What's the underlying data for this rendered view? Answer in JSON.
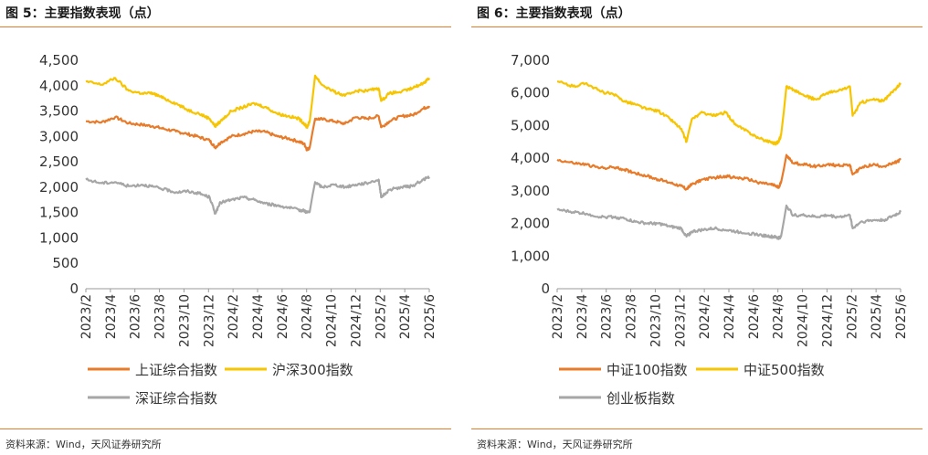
{
  "panels": [
    {
      "title": "图 5：主要指数表现（点）",
      "source": "资料来源：Wind，天风证券研究所"
    },
    {
      "title": "图 6：主要指数表现（点）",
      "source": "资料来源：Wind，天风证券研究所"
    }
  ],
  "chart_data": [
    {
      "type": "line",
      "title": "图 5：主要指数表现（点）",
      "xlabel": "",
      "ylabel": "",
      "ylim": [
        0,
        4500
      ],
      "yticks": [
        "0",
        "500",
        "1,000",
        "1,500",
        "2,000",
        "2,500",
        "3,000",
        "3,500",
        "4,000",
        "4,500"
      ],
      "xlim": [
        2023.083,
        2025.625
      ],
      "categories": [
        "2023/2",
        "2023/4",
        "2023/6",
        "2023/8",
        "2023/10",
        "2023/12",
        "2024/2",
        "2024/4",
        "2024/6",
        "2024/8",
        "2024/10",
        "2024/12",
        "2025/2",
        "2025/4",
        "2025/6"
      ],
      "grid": false,
      "legend": "bottom",
      "series": [
        {
          "name": "上证综合指数",
          "color": "#e87b2a",
          "x": [
            2023.083,
            2023.2,
            2023.3,
            2023.4,
            2023.5,
            2023.58,
            2023.66,
            2023.75,
            2023.83,
            2023.92,
            2024.0,
            2024.04,
            2024.08,
            2024.16,
            2024.25,
            2024.33,
            2024.41,
            2024.5,
            2024.58,
            2024.66,
            2024.7,
            2024.72,
            2024.74,
            2024.78,
            2024.83,
            2024.92,
            2025.0,
            2025.08,
            2025.16,
            2025.25,
            2025.27,
            2025.33,
            2025.42,
            2025.5,
            2025.58,
            2025.625
          ],
          "y": [
            3300,
            3280,
            3380,
            3260,
            3230,
            3200,
            3150,
            3100,
            3050,
            2990,
            2920,
            2780,
            2880,
            3000,
            3050,
            3100,
            3090,
            3000,
            2960,
            2900,
            2850,
            2740,
            2780,
            3350,
            3340,
            3300,
            3250,
            3380,
            3350,
            3400,
            3180,
            3300,
            3400,
            3420,
            3550,
            3600
          ]
        },
        {
          "name": "沪深300指数",
          "color": "#f7c500",
          "x": [
            2023.083,
            2023.2,
            2023.3,
            2023.4,
            2023.5,
            2023.58,
            2023.66,
            2023.75,
            2023.83,
            2023.92,
            2024.0,
            2024.04,
            2024.08,
            2024.16,
            2024.25,
            2024.33,
            2024.41,
            2024.5,
            2024.58,
            2024.66,
            2024.7,
            2024.72,
            2024.74,
            2024.78,
            2024.83,
            2024.92,
            2025.0,
            2025.08,
            2025.16,
            2025.25,
            2025.27,
            2025.33,
            2025.42,
            2025.5,
            2025.58,
            2025.625
          ],
          "y": [
            4080,
            4020,
            4150,
            3900,
            3850,
            3850,
            3750,
            3650,
            3530,
            3450,
            3350,
            3200,
            3300,
            3500,
            3580,
            3650,
            3580,
            3450,
            3400,
            3350,
            3250,
            3180,
            3300,
            4200,
            4020,
            3880,
            3800,
            3900,
            3900,
            3950,
            3700,
            3850,
            3880,
            3950,
            4050,
            4150
          ]
        },
        {
          "name": "深证综合指数",
          "color": "#a6a6a6",
          "x": [
            2023.083,
            2023.2,
            2023.3,
            2023.4,
            2023.5,
            2023.58,
            2023.66,
            2023.75,
            2023.83,
            2023.92,
            2024.0,
            2024.04,
            2024.08,
            2024.16,
            2024.25,
            2024.33,
            2024.41,
            2024.5,
            2024.58,
            2024.66,
            2024.7,
            2024.72,
            2024.74,
            2024.78,
            2024.83,
            2024.92,
            2025.0,
            2025.08,
            2025.16,
            2025.25,
            2025.27,
            2025.33,
            2025.42,
            2025.5,
            2025.58,
            2025.625
          ],
          "y": [
            2150,
            2080,
            2100,
            2020,
            2050,
            2010,
            1960,
            1900,
            1920,
            1880,
            1800,
            1480,
            1700,
            1750,
            1800,
            1750,
            1680,
            1640,
            1600,
            1550,
            1540,
            1500,
            1520,
            2100,
            2000,
            2050,
            2000,
            2050,
            2080,
            2150,
            1800,
            1950,
            2000,
            2020,
            2150,
            2200
          ]
        }
      ]
    },
    {
      "type": "line",
      "title": "图 6：主要指数表现（点）",
      "xlabel": "",
      "ylabel": "",
      "ylim": [
        0,
        7000
      ],
      "yticks": [
        "0",
        "1,000",
        "2,000",
        "3,000",
        "4,000",
        "5,000",
        "6,000",
        "7,000"
      ],
      "xlim": [
        2023.083,
        2025.625
      ],
      "categories": [
        "2023/2",
        "2023/4",
        "2023/6",
        "2023/8",
        "2023/10",
        "2023/12",
        "2024/2",
        "2024/4",
        "2024/6",
        "2024/8",
        "2024/10",
        "2024/12",
        "2025/2",
        "2025/4",
        "2025/6"
      ],
      "grid": false,
      "legend": "bottom",
      "series": [
        {
          "name": "中证100指数",
          "color": "#e87b2a",
          "x": [
            2023.083,
            2023.2,
            2023.3,
            2023.4,
            2023.5,
            2023.58,
            2023.66,
            2023.75,
            2023.83,
            2023.92,
            2024.0,
            2024.04,
            2024.08,
            2024.16,
            2024.25,
            2024.33,
            2024.41,
            2024.5,
            2024.58,
            2024.66,
            2024.7,
            2024.72,
            2024.74,
            2024.78,
            2024.83,
            2024.92,
            2025.0,
            2025.08,
            2025.16,
            2025.25,
            2025.27,
            2025.33,
            2025.42,
            2025.5,
            2025.58,
            2025.625
          ],
          "y": [
            3950,
            3850,
            3800,
            3700,
            3720,
            3650,
            3550,
            3450,
            3350,
            3250,
            3150,
            3050,
            3200,
            3350,
            3400,
            3450,
            3400,
            3350,
            3250,
            3200,
            3150,
            3100,
            3250,
            4100,
            3850,
            3800,
            3750,
            3800,
            3780,
            3800,
            3500,
            3700,
            3800,
            3750,
            3850,
            3950
          ]
        },
        {
          "name": "中证500指数",
          "color": "#f7c500",
          "x": [
            2023.083,
            2023.2,
            2023.3,
            2023.4,
            2023.5,
            2023.58,
            2023.66,
            2023.75,
            2023.83,
            2023.92,
            2024.0,
            2024.04,
            2024.08,
            2024.16,
            2024.25,
            2024.33,
            2024.41,
            2024.5,
            2024.58,
            2024.66,
            2024.7,
            2024.72,
            2024.74,
            2024.78,
            2024.83,
            2024.92,
            2025.0,
            2025.08,
            2025.16,
            2025.25,
            2025.27,
            2025.33,
            2025.42,
            2025.5,
            2025.58,
            2025.625
          ],
          "y": [
            6350,
            6200,
            6300,
            6050,
            5950,
            5750,
            5650,
            5500,
            5450,
            5200,
            4900,
            4500,
            5200,
            5400,
            5300,
            5400,
            5000,
            4800,
            4600,
            4500,
            4450,
            4500,
            4700,
            6200,
            6100,
            5900,
            5800,
            6000,
            6050,
            6200,
            5300,
            5700,
            5800,
            5750,
            6100,
            6300
          ]
        },
        {
          "name": "创业板指数",
          "color": "#a6a6a6",
          "x": [
            2023.083,
            2023.2,
            2023.3,
            2023.4,
            2023.5,
            2023.58,
            2023.66,
            2023.75,
            2023.83,
            2023.92,
            2024.0,
            2024.04,
            2024.08,
            2024.16,
            2024.25,
            2024.33,
            2024.41,
            2024.5,
            2024.58,
            2024.66,
            2024.7,
            2024.72,
            2024.74,
            2024.78,
            2024.83,
            2024.92,
            2025.0,
            2025.08,
            2025.16,
            2025.25,
            2025.27,
            2025.33,
            2025.42,
            2025.5,
            2025.58,
            2025.625
          ],
          "y": [
            2420,
            2350,
            2300,
            2200,
            2200,
            2150,
            2050,
            2000,
            2000,
            1900,
            1850,
            1600,
            1750,
            1800,
            1850,
            1800,
            1750,
            1700,
            1650,
            1600,
            1580,
            1550,
            1600,
            2550,
            2250,
            2250,
            2200,
            2250,
            2200,
            2250,
            1850,
            2050,
            2100,
            2100,
            2250,
            2350
          ]
        }
      ]
    }
  ]
}
